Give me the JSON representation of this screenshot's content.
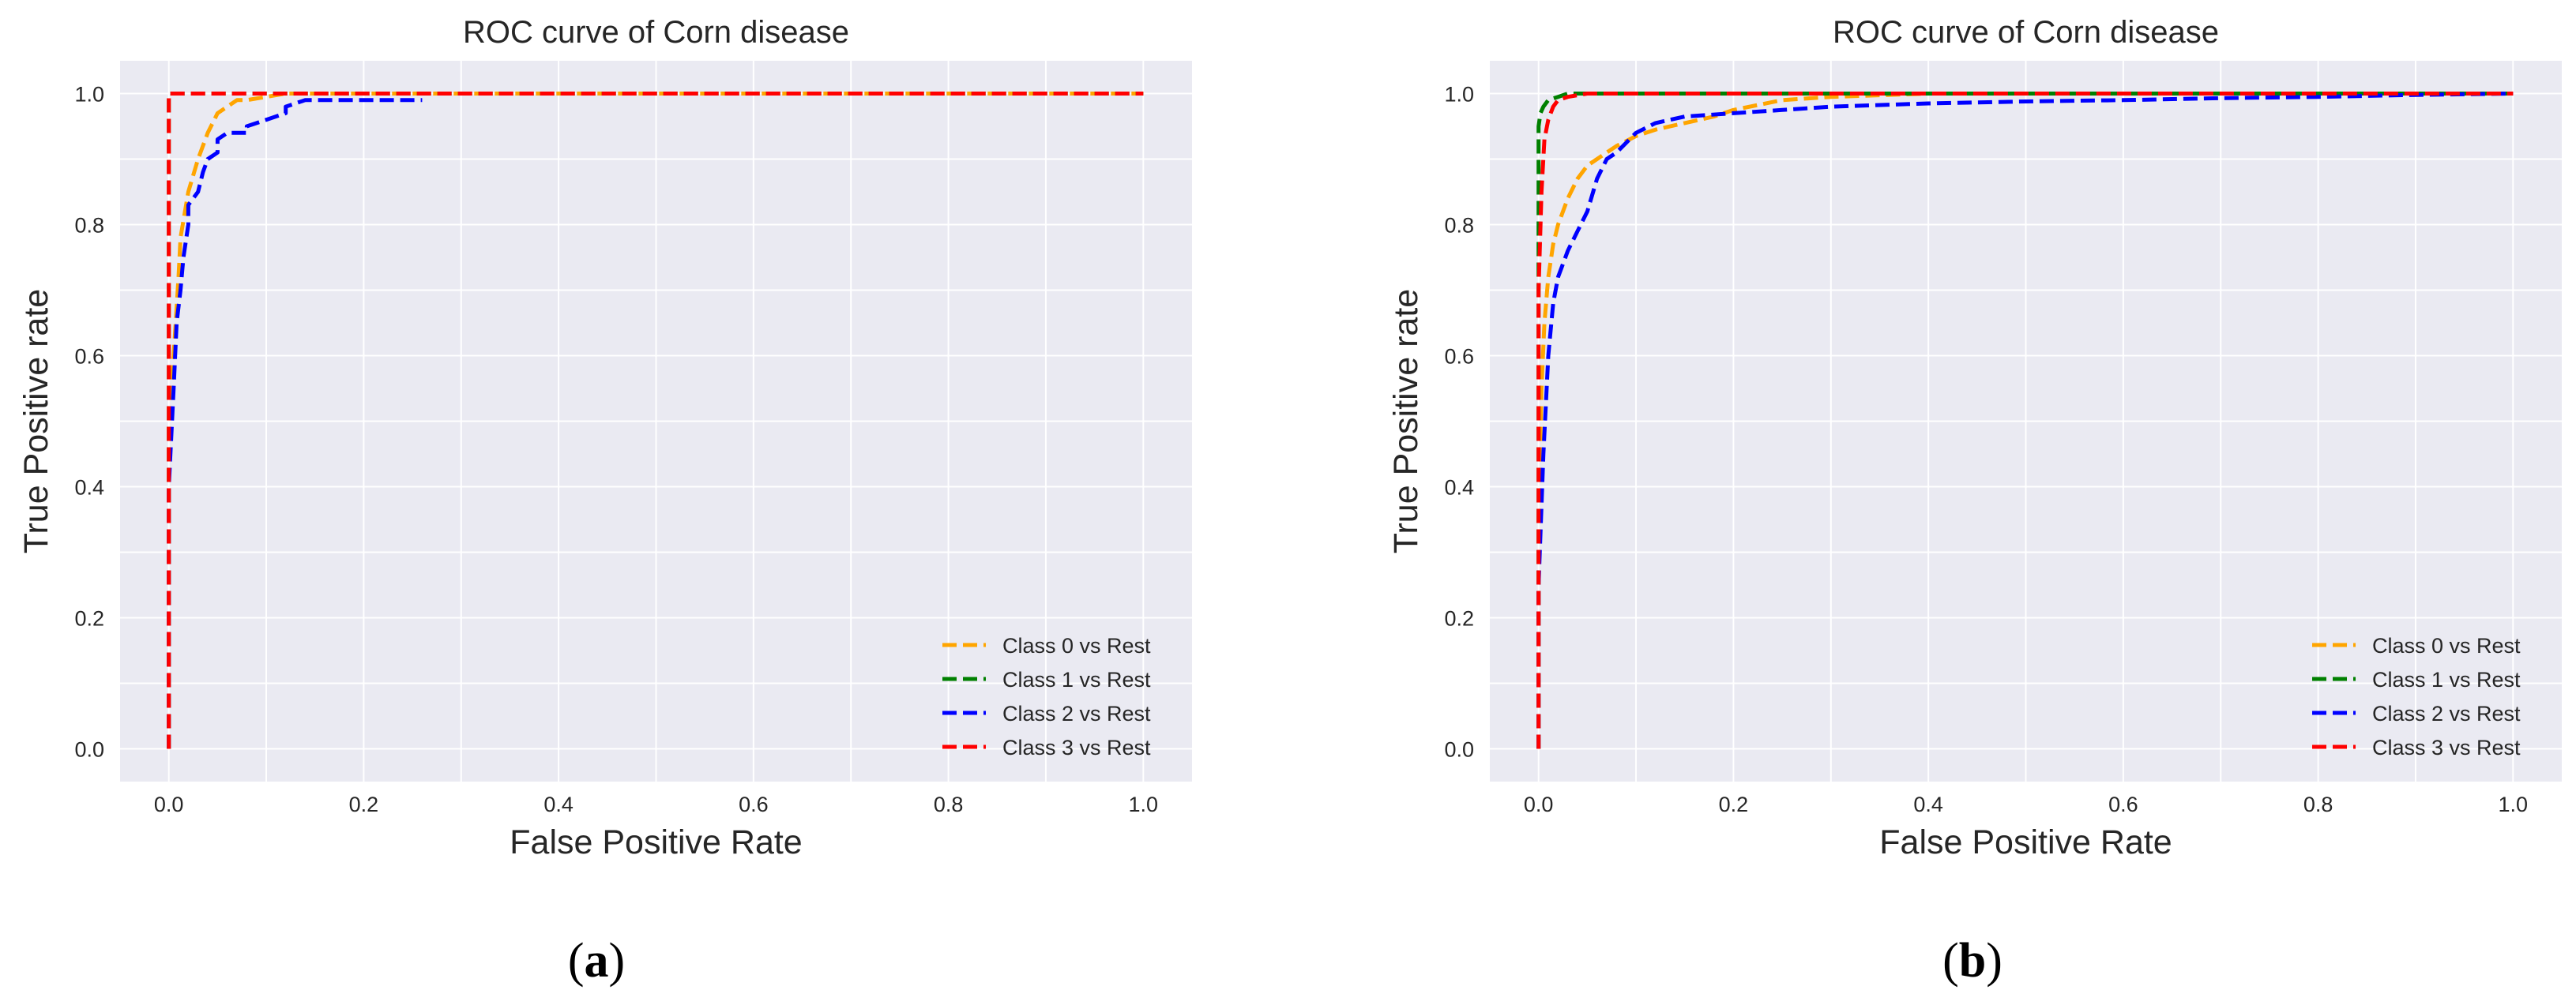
{
  "colors": {
    "background": "#eaeaf2",
    "grid": "#ffffff",
    "class0": "#ffa500",
    "class1": "#008000",
    "class2": "#0000ff",
    "class3": "#ff0000"
  },
  "panels": [
    {
      "letter": "a",
      "open": "(",
      "close": ")"
    },
    {
      "letter": "b",
      "open": "(",
      "close": ")"
    }
  ],
  "chart_data": [
    {
      "type": "line",
      "title": "ROC curve of Corn disease",
      "xlabel": "False Positive Rate",
      "ylabel": "True Positive rate",
      "xlim": [
        -0.05,
        1.05
      ],
      "ylim": [
        -0.05,
        1.05
      ],
      "xticks": [
        0.0,
        0.2,
        0.4,
        0.6,
        0.8,
        1.0
      ],
      "yticks": [
        0.0,
        0.2,
        0.4,
        0.6,
        0.8,
        1.0
      ],
      "xtick_labels": [
        "0.0",
        "0.2",
        "0.4",
        "0.6",
        "0.8",
        "1.0"
      ],
      "ytick_labels": [
        "0.0",
        "0.2",
        "0.4",
        "0.6",
        "0.8",
        "1.0"
      ],
      "grid": true,
      "legend_position": "lower-right",
      "series": [
        {
          "name": "Class 0 vs Rest",
          "color": "#ffa500",
          "style": "dashed",
          "x": [
            0.0,
            0.0,
            0.005,
            0.01,
            0.012,
            0.02,
            0.03,
            0.04,
            0.05,
            0.06,
            0.07,
            0.08,
            0.1,
            0.12,
            0.15,
            0.2,
            0.3,
            0.5,
            1.0
          ],
          "y": [
            0.0,
            0.5,
            0.6,
            0.72,
            0.78,
            0.85,
            0.9,
            0.94,
            0.97,
            0.98,
            0.99,
            0.99,
            0.995,
            1.0,
            1.0,
            1.0,
            1.0,
            1.0,
            1.0
          ]
        },
        {
          "name": "Class 1 vs Rest",
          "color": "#008000",
          "style": "dashed",
          "x": [
            0.0,
            0.0,
            1.0
          ],
          "y": [
            0.0,
            1.0,
            1.0
          ]
        },
        {
          "name": "Class 2 vs Rest",
          "color": "#0000ff",
          "style": "dashed",
          "x": [
            0.0,
            0.0,
            0.005,
            0.008,
            0.012,
            0.015,
            0.02,
            0.02,
            0.03,
            0.035,
            0.04,
            0.05,
            0.05,
            0.06,
            0.08,
            0.08,
            0.1,
            0.12,
            0.12,
            0.14,
            0.2,
            0.26
          ],
          "y": [
            0.0,
            0.4,
            0.55,
            0.65,
            0.7,
            0.75,
            0.8,
            0.83,
            0.85,
            0.88,
            0.9,
            0.91,
            0.93,
            0.94,
            0.94,
            0.95,
            0.96,
            0.97,
            0.98,
            0.99,
            0.99,
            0.99
          ]
        },
        {
          "name": "Class 3 vs Rest",
          "color": "#ff0000",
          "style": "dashed",
          "x": [
            0.0,
            0.0,
            1.0
          ],
          "y": [
            0.0,
            1.0,
            1.0
          ]
        }
      ]
    },
    {
      "type": "line",
      "title": "ROC curve of Corn disease",
      "xlabel": "False Positive Rate",
      "ylabel": "True Positive rate",
      "xlim": [
        -0.05,
        1.05
      ],
      "ylim": [
        -0.05,
        1.05
      ],
      "xticks": [
        0.0,
        0.2,
        0.4,
        0.6,
        0.8,
        1.0
      ],
      "yticks": [
        0.0,
        0.2,
        0.4,
        0.6,
        0.8,
        1.0
      ],
      "xtick_labels": [
        "0.0",
        "0.2",
        "0.4",
        "0.6",
        "0.8",
        "1.0"
      ],
      "ytick_labels": [
        "0.0",
        "0.2",
        "0.4",
        "0.6",
        "0.8",
        "1.0"
      ],
      "grid": true,
      "legend_position": "lower-right",
      "series": [
        {
          "name": "Class 0 vs Rest",
          "color": "#ffa500",
          "style": "dashed",
          "x": [
            0.0,
            0.0,
            0.003,
            0.006,
            0.01,
            0.015,
            0.02,
            0.03,
            0.04,
            0.05,
            0.06,
            0.08,
            0.1,
            0.12,
            0.15,
            0.18,
            0.2,
            0.25,
            0.3,
            0.4,
            0.6,
            1.0
          ],
          "y": [
            0.0,
            0.35,
            0.55,
            0.65,
            0.72,
            0.77,
            0.8,
            0.84,
            0.87,
            0.89,
            0.9,
            0.92,
            0.935,
            0.945,
            0.955,
            0.965,
            0.975,
            0.99,
            0.995,
            1.0,
            1.0,
            1.0
          ]
        },
        {
          "name": "Class 1 vs Rest",
          "color": "#008000",
          "style": "dashed",
          "x": [
            0.0,
            0.0,
            0.002,
            0.005,
            0.01,
            0.02,
            0.03,
            0.05,
            0.1,
            0.3,
            0.6,
            1.0
          ],
          "y": [
            0.0,
            0.95,
            0.97,
            0.98,
            0.99,
            0.995,
            1.0,
            1.0,
            1.0,
            1.0,
            1.0,
            1.0
          ]
        },
        {
          "name": "Class 2 vs Rest",
          "color": "#0000ff",
          "style": "dashed",
          "x": [
            0.0,
            0.0,
            0.005,
            0.01,
            0.015,
            0.02,
            0.03,
            0.04,
            0.05,
            0.06,
            0.07,
            0.08,
            0.1,
            0.12,
            0.15,
            0.2,
            0.25,
            0.3,
            0.4,
            0.5,
            0.6,
            0.7,
            0.8,
            0.9,
            1.0
          ],
          "y": [
            0.0,
            0.25,
            0.45,
            0.6,
            0.68,
            0.72,
            0.76,
            0.79,
            0.82,
            0.87,
            0.9,
            0.91,
            0.94,
            0.955,
            0.965,
            0.97,
            0.975,
            0.98,
            0.985,
            0.988,
            0.99,
            0.993,
            0.995,
            0.998,
            1.0
          ]
        },
        {
          "name": "Class 3 vs Rest",
          "color": "#ff0000",
          "style": "dashed",
          "x": [
            0.0,
            0.0,
            0.003,
            0.006,
            0.01,
            0.015,
            0.02,
            0.03,
            0.05,
            0.1,
            0.3,
            1.0
          ],
          "y": [
            0.0,
            0.7,
            0.85,
            0.93,
            0.96,
            0.98,
            0.99,
            0.995,
            1.0,
            1.0,
            1.0,
            1.0
          ]
        }
      ]
    }
  ]
}
